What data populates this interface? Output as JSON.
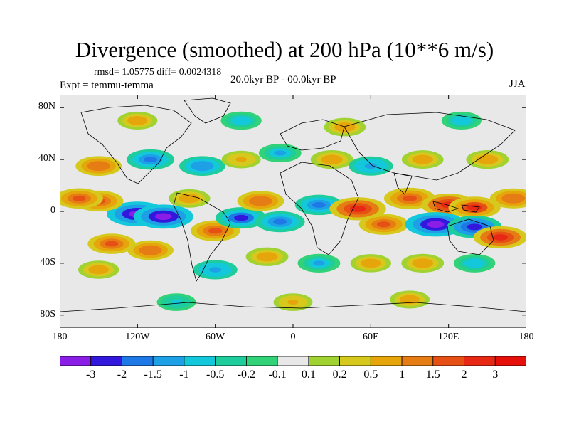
{
  "chart_data": {
    "type": "heatmap",
    "title": "Divergence (smoothed) at 200 hPa (10**6 m/s)",
    "stats": "rmsd= 1.05775 diff= 0.0024318",
    "experiment": "Expt = temmu-temma",
    "period": "20.0kyr BP - 00.0kyr BP",
    "season": "JJA",
    "x_ticks": [
      "180",
      "120W",
      "60W",
      "0",
      "60E",
      "120E",
      "180"
    ],
    "x_tick_values": [
      -180,
      -120,
      -60,
      0,
      60,
      120,
      180
    ],
    "y_ticks": [
      "80N",
      "40N",
      "0",
      "40S",
      "80S"
    ],
    "y_tick_values": [
      80,
      40,
      0,
      -40,
      -80
    ],
    "xlim": [
      -180,
      180
    ],
    "ylim": [
      -90,
      90
    ],
    "color_levels": [
      "-3",
      "-2",
      "-1.5",
      "-1",
      "-0.5",
      "-0.2",
      "-0.1",
      "0.1",
      "0.2",
      "0.5",
      "1",
      "1.5",
      "2",
      "3"
    ],
    "color_level_values": [
      -3,
      -2,
      -1.5,
      -1,
      -0.5,
      -0.2,
      -0.1,
      0.1,
      0.2,
      0.5,
      1,
      1.5,
      2,
      3
    ],
    "colors": [
      "#8b1ee6",
      "#3217dc",
      "#1e78e6",
      "#1ea0e6",
      "#14c8dc",
      "#1ecd9b",
      "#32d278",
      "#e8e8e8",
      "#a0d232",
      "#d7c81e",
      "#e6a50a",
      "#e67d14",
      "#e65014",
      "#e62814",
      "#e60f0a"
    ],
    "field_features": [
      {
        "lon": -120,
        "lat": -2,
        "value": -3.2
      },
      {
        "lon": -100,
        "lat": -4,
        "value": -3.0
      },
      {
        "lon": -150,
        "lat": 8,
        "value": 1.8
      },
      {
        "lon": -165,
        "lat": 10,
        "value": 1.6
      },
      {
        "lon": -80,
        "lat": 10,
        "value": 0.9
      },
      {
        "lon": -60,
        "lat": -15,
        "value": 1.8
      },
      {
        "lon": -40,
        "lat": -5,
        "value": -2.0
      },
      {
        "lon": -25,
        "lat": 8,
        "value": 1.5
      },
      {
        "lon": -10,
        "lat": -8,
        "value": -1.8
      },
      {
        "lon": 20,
        "lat": 5,
        "value": -1.6
      },
      {
        "lon": 50,
        "lat": 2,
        "value": 2.6
      },
      {
        "lon": 70,
        "lat": -10,
        "value": 1.8
      },
      {
        "lon": 90,
        "lat": 10,
        "value": 2.0
      },
      {
        "lon": 120,
        "lat": 5,
        "value": 2.4
      },
      {
        "lon": 140,
        "lat": 3,
        "value": 2.1
      },
      {
        "lon": 110,
        "lat": -10,
        "value": -3.1
      },
      {
        "lon": 140,
        "lat": -12,
        "value": -2.4
      },
      {
        "lon": 160,
        "lat": -20,
        "value": 2.3
      },
      {
        "lon": 170,
        "lat": 10,
        "value": 1.5
      },
      {
        "lon": -140,
        "lat": -25,
        "value": 1.6
      },
      {
        "lon": -110,
        "lat": -30,
        "value": 1.4
      },
      {
        "lon": -150,
        "lat": -45,
        "value": 0.8
      },
      {
        "lon": -60,
        "lat": -45,
        "value": -1.2
      },
      {
        "lon": -20,
        "lat": -35,
        "value": 1.0
      },
      {
        "lon": 20,
        "lat": -40,
        "value": -1.0
      },
      {
        "lon": 60,
        "lat": -40,
        "value": 0.8
      },
      {
        "lon": 100,
        "lat": -40,
        "value": 1.0
      },
      {
        "lon": 140,
        "lat": -40,
        "value": -0.9
      },
      {
        "lon": -150,
        "lat": 35,
        "value": 1.4
      },
      {
        "lon": -110,
        "lat": 40,
        "value": -1.6
      },
      {
        "lon": -70,
        "lat": 35,
        "value": -1.4
      },
      {
        "lon": -40,
        "lat": 40,
        "value": 0.6
      },
      {
        "lon": -10,
        "lat": 45,
        "value": -1.0
      },
      {
        "lon": 30,
        "lat": 40,
        "value": 1.0
      },
      {
        "lon": 60,
        "lat": 35,
        "value": -1.2
      },
      {
        "lon": 100,
        "lat": 40,
        "value": 0.9
      },
      {
        "lon": 150,
        "lat": 40,
        "value": 1.0
      },
      {
        "lon": -120,
        "lat": 70,
        "value": 0.7
      },
      {
        "lon": -40,
        "lat": 70,
        "value": -0.8
      },
      {
        "lon": 40,
        "lat": 65,
        "value": 0.9
      },
      {
        "lon": 130,
        "lat": 70,
        "value": -0.7
      },
      {
        "lon": 0,
        "lat": -70,
        "value": 0.6
      },
      {
        "lon": 90,
        "lat": -68,
        "value": 0.7
      },
      {
        "lon": -90,
        "lat": -70,
        "value": -0.6
      }
    ]
  }
}
